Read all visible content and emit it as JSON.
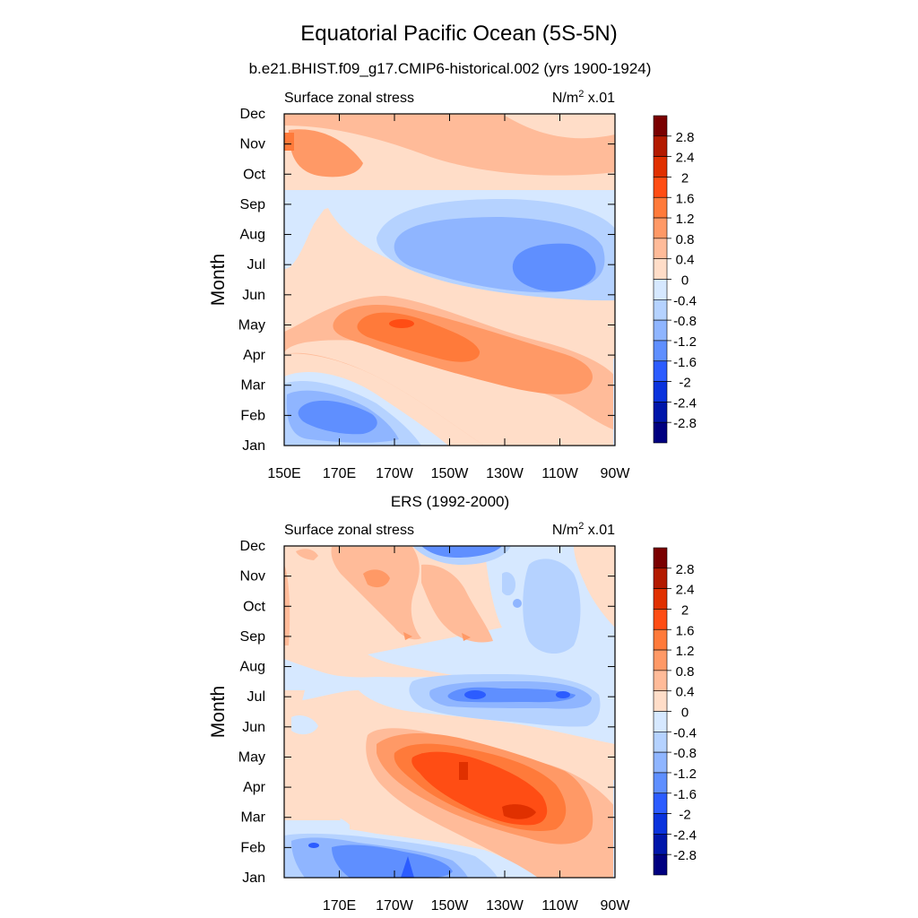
{
  "figure": {
    "title": "Equatorial Pacific Ocean (5S-5N)"
  },
  "chart_data": [
    {
      "type": "heatmap",
      "subtitle": "b.e21.BHIST.f09_g17.CMIP6-historical.002 (yrs 1900-1924)",
      "left_label": "Surface zonal stress",
      "units_base": "N/m",
      "units_sup": "2",
      "units_tail": " x.01",
      "ylabel": "Month",
      "x_ticks": [
        "150E",
        "170E",
        "170W",
        "150W",
        "130W",
        "110W",
        "90W"
      ],
      "y_ticks": [
        "Jan",
        "Feb",
        "Mar",
        "Apr",
        "May",
        "Jun",
        "Jul",
        "Aug",
        "Sep",
        "Oct",
        "Nov",
        "Dec"
      ],
      "lon_range_deg_east": [
        150,
        270
      ],
      "grid": false
    },
    {
      "type": "heatmap",
      "subtitle": "ERS (1992-2000)",
      "left_label": "Surface zonal stress",
      "units_base": "N/m",
      "units_sup": "2",
      "units_tail": " x.01",
      "ylabel": "Month",
      "x_ticks": [
        "",
        "170E",
        "170W",
        "150W",
        "130W",
        "110W",
        "90W"
      ],
      "y_ticks": [
        "Jan",
        "Feb",
        "Mar",
        "Apr",
        "May",
        "Jun",
        "Jul",
        "Aug",
        "Sep",
        "Oct",
        "Nov",
        "Dec"
      ],
      "lon_range_deg_east": [
        150,
        270
      ],
      "grid": false
    }
  ],
  "colorbar": {
    "labels": [
      "2.8",
      "2.4",
      "2",
      "1.6",
      "1.2",
      "0.8",
      "0.4",
      "0",
      "-0.4",
      "-0.8",
      "-1.2",
      "-1.6",
      "-2",
      "-2.4",
      "-2.8"
    ],
    "colors": [
      "#7a0000",
      "#b31a00",
      "#e03000",
      "#ff4d14",
      "#ff7a3a",
      "#ff9966",
      "#ffbb99",
      "#ffddc8",
      "#d6e8ff",
      "#b5d2ff",
      "#8fb5ff",
      "#5f8fff",
      "#2c5cff",
      "#0a33dd",
      "#0016aa",
      "#000080"
    ]
  }
}
